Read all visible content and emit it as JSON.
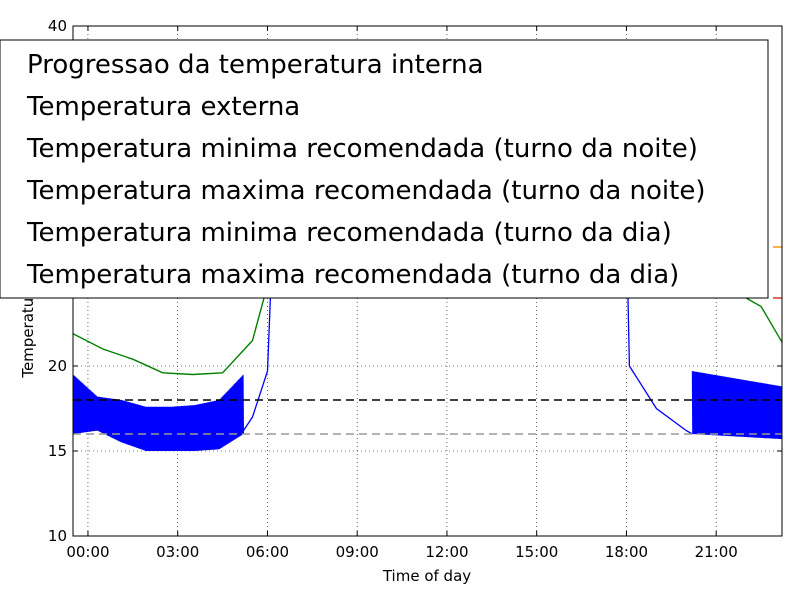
{
  "chart_data": {
    "type": "line",
    "title": "",
    "xlabel": "Time of day",
    "ylabel": "Temperatura",
    "xlim": [
      -0.5,
      23.2
    ],
    "ylim": [
      10,
      40
    ],
    "grid": true,
    "legend_position": "top",
    "x_ticks": [
      {
        "value": 0,
        "label": "00:00"
      },
      {
        "value": 3,
        "label": "03:00"
      },
      {
        "value": 6,
        "label": "06:00"
      },
      {
        "value": 9,
        "label": "09:00"
      },
      {
        "value": 12,
        "label": "12:00"
      },
      {
        "value": 15,
        "label": "15:00"
      },
      {
        "value": 18,
        "label": "18:00"
      },
      {
        "value": 21,
        "label": "21:00"
      }
    ],
    "y_ticks": [
      {
        "value": 10,
        "label": "10"
      },
      {
        "value": 15,
        "label": "15"
      },
      {
        "value": 20,
        "label": "20"
      },
      {
        "value": 40,
        "label": "40"
      }
    ],
    "series": [
      {
        "name": "Progressao da temperatura interna",
        "color": "#0000ff",
        "style": "solid",
        "segments": [
          {
            "x": [
              -0.5,
              5.2
            ],
            "band_low": [
              16.0,
              16.2,
              15.5,
              15.0,
              15.0,
              15.0,
              15.1,
              16.0
            ],
            "band_high": [
              19.5,
              18.2,
              18.0,
              17.6,
              17.6,
              17.7,
              18.0,
              19.5
            ]
          },
          {
            "x": [
              16.5,
              18.0
            ],
            "band_low": [
              27.0,
              26.5
            ],
            "band_high": [
              28.0,
              28.0
            ]
          },
          {
            "x": [
              20.2,
              23.2
            ],
            "band_low": [
              16.0,
              15.7
            ],
            "band_high": [
              19.7,
              18.8
            ]
          }
        ],
        "line": {
          "x": [
            5.2,
            5.5,
            6.0,
            6.2,
            6.8,
            7.0,
            16.3,
            18.0,
            18.1,
            19.0,
            20.0,
            20.2
          ],
          "y": [
            16.2,
            17.0,
            19.7,
            28.5,
            28.5,
            29.0,
            29.0,
            28.5,
            20.0,
            17.5,
            16.2,
            16.0
          ]
        }
      },
      {
        "name": "Temperatura externa",
        "color": "#008000",
        "style": "solid",
        "x": [
          -0.5,
          0.5,
          1.5,
          2.5,
          3.5,
          4.5,
          5.5,
          6.5,
          7.5,
          16.5,
          17.5,
          18.5,
          19.5,
          20.5,
          21.5,
          22.5,
          23.2
        ],
        "y": [
          21.9,
          21.0,
          20.4,
          19.6,
          19.5,
          19.6,
          21.5,
          28.0,
          29.0,
          29.0,
          28.5,
          27.5,
          26.5,
          25.5,
          24.5,
          23.5,
          21.4
        ]
      },
      {
        "name": "Temperatura minima recomendada (turno da noite)",
        "color": "#999999",
        "style": "dashed",
        "x": [
          -0.5,
          23.2
        ],
        "y": [
          16,
          16
        ]
      },
      {
        "name": "Temperatura maxima recomendada (turno da noite)",
        "color": "#000000",
        "style": "dashed",
        "x": [
          -0.5,
          23.2
        ],
        "y": [
          18,
          18
        ]
      },
      {
        "name": "Temperatura minima recomendada (turno da dia)",
        "color": "#ff8c00",
        "style": "solid",
        "x": [
          22.9,
          23.2
        ],
        "y": [
          27,
          27
        ]
      },
      {
        "name": "Temperatura maxima recomendada (turno da dia)",
        "color": "#d62728",
        "style": "solid",
        "x": [
          22.9,
          23.2
        ],
        "y": [
          24,
          24
        ]
      }
    ]
  },
  "legend": {
    "items": [
      "Progressao da temperatura interna",
      "Temperatura externa",
      "Temperatura minima recomendada (turno da noite)",
      "Temperatura maxima recomendada (turno da noite)",
      "Temperatura minima recomendada (turno da dia)",
      "Temperatura maxima recomendada (turno da dia)"
    ]
  }
}
